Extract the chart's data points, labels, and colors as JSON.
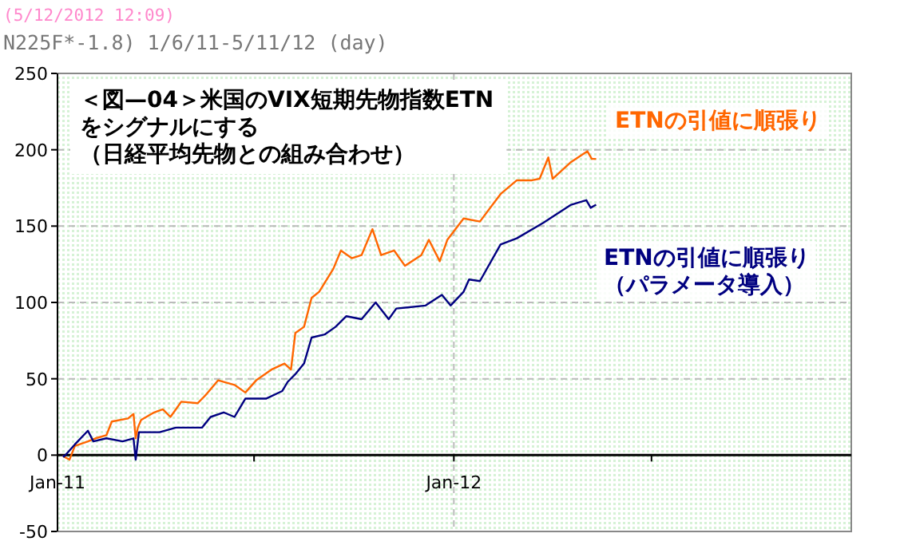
{
  "chart_data": {
    "type": "line",
    "title": "＜図—04＞米国のVIX短期先物指数ETNをシグナルにする（日経平均先物との組み合わせ）",
    "subtitle": "N225F*-1.8) 1/6/11-5/11/12 (day)",
    "annotations": [
      "(5/12/2012 12:09)"
    ],
    "xlim": [
      "2011-01-01",
      "2013-01-01"
    ],
    "xticks": [
      {
        "value": "2011-01-01",
        "label": "Jan-11"
      },
      {
        "value": "2011-07-01",
        "label": null
      },
      {
        "value": "2012-01-01",
        "label": "Jan-12"
      },
      {
        "value": "2012-07-01",
        "label": null
      }
    ],
    "ylim": [
      -50,
      250
    ],
    "yticks": [
      -50,
      0,
      50,
      100,
      150,
      200,
      250
    ],
    "grid": true,
    "series": [
      {
        "name": "ETNの引値に順張り",
        "color": "#ff6600",
        "x": [
          "2011-01-06",
          "2011-01-07",
          "2011-01-12",
          "2011-01-17",
          "2011-01-29",
          "2011-02-05",
          "2011-02-15",
          "2011-02-20",
          "2011-03-07",
          "2011-03-12",
          "2011-03-14",
          "2011-03-16",
          "2011-03-19",
          "2011-03-31",
          "2011-04-08",
          "2011-04-15",
          "2011-04-25",
          "2011-05-10",
          "2011-05-17",
          "2011-05-29",
          "2011-06-13",
          "2011-06-23",
          "2011-07-03",
          "2011-07-17",
          "2011-07-29",
          "2011-08-04",
          "2011-08-08",
          "2011-08-16",
          "2011-08-23",
          "2011-08-30",
          "2011-09-12",
          "2011-09-19",
          "2011-09-29",
          "2011-10-08",
          "2011-10-18",
          "2011-10-26",
          "2011-11-07",
          "2011-11-17",
          "2011-12-02",
          "2011-12-09",
          "2011-12-19",
          "2011-12-26",
          "2012-01-10",
          "2012-01-25",
          "2012-02-13",
          "2012-02-28",
          "2012-03-13",
          "2012-03-20",
          "2012-03-28",
          "2012-04-01",
          "2012-04-18",
          "2012-05-03",
          "2012-05-07",
          "2012-05-11"
        ],
        "values": [
          0,
          -1,
          -3,
          6,
          9,
          11,
          13,
          22,
          24,
          27,
          11,
          18,
          23,
          28,
          30,
          25,
          35,
          34,
          39,
          49,
          46,
          41,
          49,
          56,
          60,
          56,
          80,
          84,
          103,
          107,
          122,
          134,
          129,
          131,
          148,
          131,
          134,
          124,
          131,
          141,
          127,
          141,
          155,
          153,
          171,
          180,
          180,
          181,
          195,
          181,
          192,
          199,
          194,
          194
        ]
      },
      {
        "name": "ETNの引値に順張り（パラメータ導入）",
        "color": "#000080",
        "x": [
          "2011-01-06",
          "2011-01-07",
          "2011-01-17",
          "2011-01-29",
          "2011-02-03",
          "2011-02-15",
          "2011-03-02",
          "2011-03-12",
          "2011-03-14",
          "2011-03-17",
          "2011-04-05",
          "2011-04-20",
          "2011-05-14",
          "2011-05-22",
          "2011-06-03",
          "2011-06-13",
          "2011-06-23",
          "2011-07-12",
          "2011-07-27",
          "2011-08-01",
          "2011-08-08",
          "2011-08-16",
          "2011-08-23",
          "2011-09-04",
          "2011-09-14",
          "2011-09-24",
          "2011-10-08",
          "2011-10-21",
          "2011-11-02",
          "2011-11-09",
          "2011-12-06",
          "2011-12-21",
          "2011-12-29",
          "2012-01-10",
          "2012-01-15",
          "2012-01-25",
          "2012-02-13",
          "2012-02-28",
          "2012-03-23",
          "2012-04-18",
          "2012-05-02",
          "2012-05-06",
          "2012-05-11"
        ],
        "values": [
          0,
          -1,
          7,
          16,
          9,
          11,
          9,
          11,
          -3,
          15,
          15,
          18,
          18,
          25,
          28,
          25,
          37,
          37,
          42,
          48,
          53,
          60,
          77,
          79,
          84,
          91,
          89,
          100,
          89,
          96,
          98,
          105,
          98,
          107,
          115,
          114,
          138,
          142,
          152,
          164,
          167,
          162,
          164
        ]
      }
    ]
  }
}
